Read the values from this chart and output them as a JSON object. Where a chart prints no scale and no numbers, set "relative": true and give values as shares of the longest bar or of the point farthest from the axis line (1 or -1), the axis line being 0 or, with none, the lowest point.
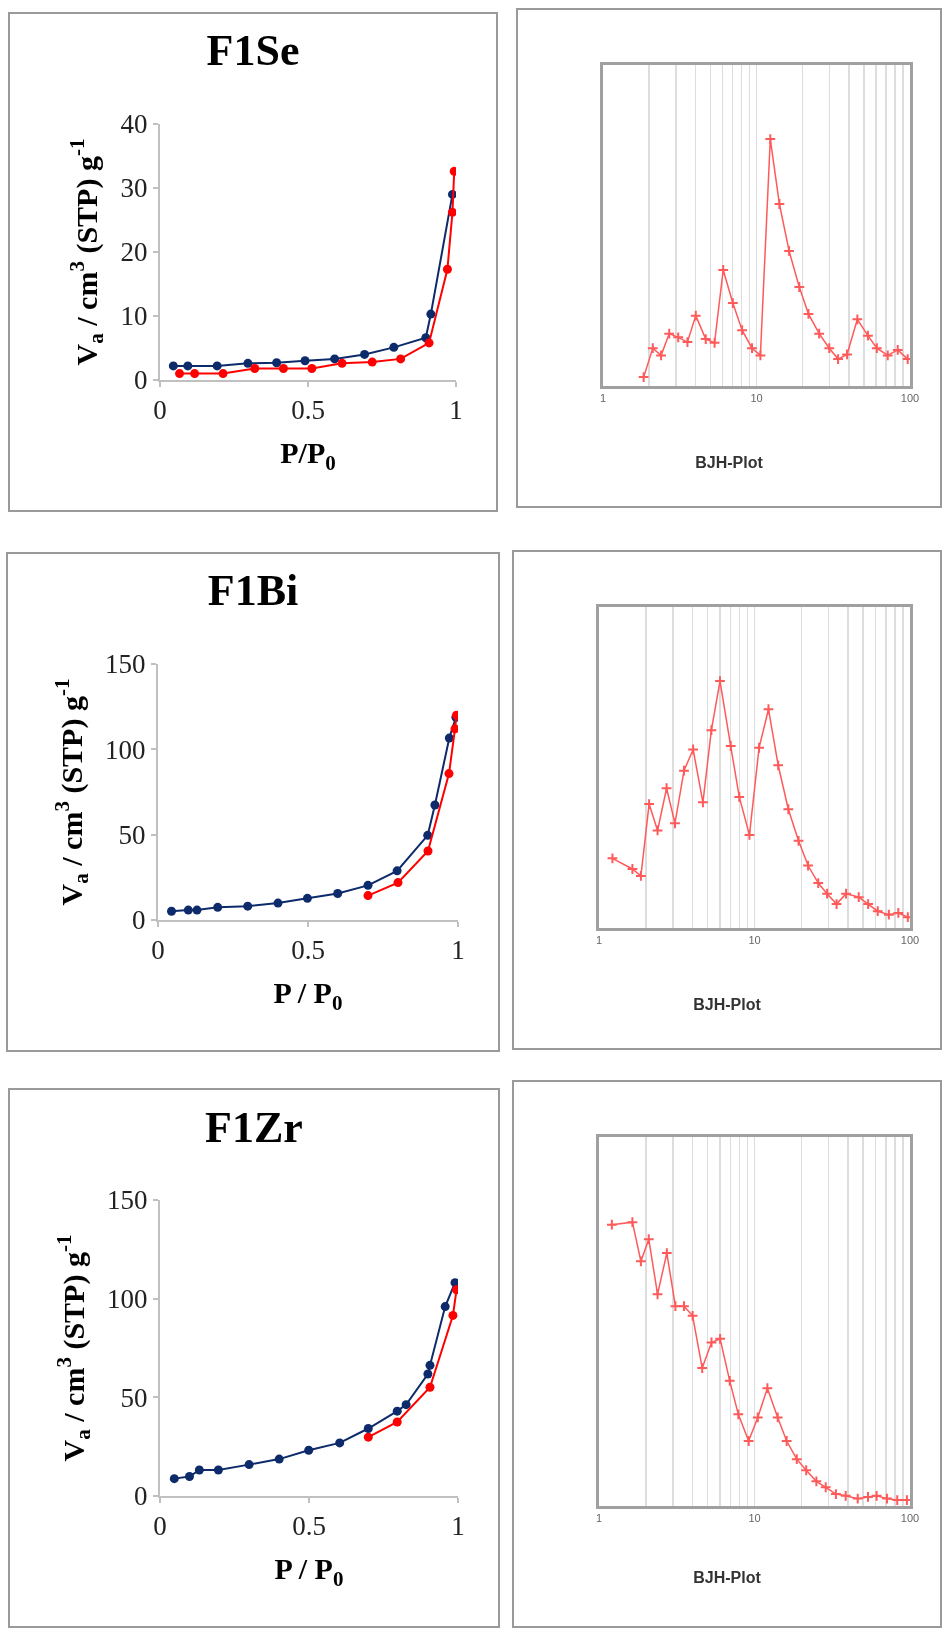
{
  "chart_data": [
    {
      "type": "line",
      "title": "F1Se",
      "xlabel": "P/P$_{0}$",
      "ylabel": "V$_{a}$ / cm$^{3}$ (STP) g$^{-1}$",
      "xlim": [
        0,
        1
      ],
      "xticks": [
        0,
        0.5,
        1
      ],
      "ylim": [
        0,
        40
      ],
      "yticks": [
        0,
        10,
        20,
        30,
        40
      ],
      "marker": "circle",
      "grid": false,
      "series": [
        {
          "color": "#ff0000",
          "x": [
            0.066,
            0.117,
            0.213,
            0.32,
            0.417,
            0.513,
            0.615,
            0.717,
            0.813,
            0.909,
            0.971,
            0.988,
            0.994
          ],
          "values": [
            1.0,
            1.0,
            1.0,
            1.8,
            1.8,
            1.8,
            2.6,
            2.8,
            3.3,
            5.8,
            17.3,
            26.2,
            32.6
          ]
        },
        {
          "color": "#0d2a6b",
          "x": [
            0.045,
            0.094,
            0.193,
            0.297,
            0.394,
            0.49,
            0.59,
            0.691,
            0.79,
            0.898,
            0.915,
            0.988
          ],
          "values": [
            2.2,
            2.2,
            2.2,
            2.6,
            2.7,
            3.0,
            3.3,
            4.0,
            5.1,
            6.6,
            10.3,
            29.0
          ]
        }
      ]
    },
    {
      "type": "line",
      "title": "BJH-Plot",
      "relative": true,
      "log": "x",
      "xlim": [
        1,
        100
      ],
      "xticks": [
        1,
        {
          "value": 2,
          "label": null
        },
        {
          "value": 3,
          "label": null
        },
        {
          "value": 4,
          "label": null
        },
        {
          "value": 5,
          "label": null
        },
        {
          "value": 6,
          "label": null
        },
        {
          "value": 7,
          "label": null
        },
        {
          "value": 8,
          "label": null
        },
        {
          "value": 9,
          "label": null
        },
        10,
        {
          "value": 20,
          "label": null
        },
        {
          "value": 30,
          "label": null
        },
        {
          "value": 40,
          "label": null
        },
        {
          "value": 50,
          "label": null
        },
        {
          "value": 60,
          "label": null
        },
        {
          "value": 70,
          "label": null
        },
        {
          "value": 80,
          "label": null
        },
        {
          "value": 90,
          "label": null
        },
        100
      ],
      "marker": "cross",
      "grid": "x",
      "series": [
        {
          "color": "#ff5a5a",
          "x": [
            1.84,
            2.11,
            2.39,
            2.7,
            3.09,
            3.55,
            4.02,
            4.67,
            5.33,
            6.07,
            7.01,
            8.06,
            9.35,
            10.6,
            12.3,
            14.1,
            16.3,
            19.0,
            21.8,
            25.6,
            29.8,
            34.0,
            38.9,
            45.4,
            53.2,
            60.8,
            71.6,
            83.2,
            96.6
          ],
          "values": [
            0.036,
            0.153,
            0.124,
            0.212,
            0.197,
            0.178,
            0.285,
            0.19,
            0.175,
            0.47,
            0.336,
            0.226,
            0.153,
            0.124,
            1,
            0.737,
            0.547,
            0.401,
            0.292,
            0.212,
            0.153,
            0.109,
            0.128,
            0.27,
            0.204,
            0.153,
            0.124,
            0.146,
            0.109
          ]
        }
      ]
    },
    {
      "type": "line",
      "title": "F1Bi",
      "xlabel": "P / P$_{0}$",
      "ylabel": "V$_{a}$ / cm$^{3}$ (STP) g$^{-1}$",
      "xlim": [
        0,
        1
      ],
      "xticks": [
        0,
        0.5,
        1
      ],
      "ylim": [
        0,
        150
      ],
      "yticks": [
        0,
        50,
        100,
        150
      ],
      "marker": "circle",
      "grid": false,
      "series": [
        {
          "color": "#ff0000",
          "x": [
            0.7,
            0.8,
            0.9,
            0.97,
            0.99,
            0.995
          ],
          "values": [
            14.3,
            21.9,
            40.4,
            85.8,
            112,
            120
          ]
        },
        {
          "color": "#0d2a6b",
          "x": [
            0.045,
            0.101,
            0.13,
            0.199,
            0.299,
            0.4,
            0.498,
            0.599,
            0.7,
            0.797,
            0.899,
            0.923,
            0.971,
            0.993
          ],
          "values": [
            5.1,
            5.8,
            5.8,
            7.4,
            8.1,
            9.9,
            12.7,
            15.5,
            20.3,
            28.8,
            49.6,
            67.4,
            106.6,
            118.8
          ]
        }
      ]
    },
    {
      "type": "line",
      "title": "BJH-Plot",
      "relative": true,
      "log": "x",
      "xlim": [
        1,
        100
      ],
      "xticks": [
        1,
        {
          "value": 2,
          "label": null
        },
        {
          "value": 3,
          "label": null
        },
        {
          "value": 4,
          "label": null
        },
        {
          "value": 5,
          "label": null
        },
        {
          "value": 6,
          "label": null
        },
        {
          "value": 7,
          "label": null
        },
        {
          "value": 8,
          "label": null
        },
        {
          "value": 9,
          "label": null
        },
        10,
        {
          "value": 20,
          "label": null
        },
        {
          "value": 30,
          "label": null
        },
        {
          "value": 40,
          "label": null
        },
        {
          "value": 50,
          "label": null
        },
        {
          "value": 60,
          "label": null
        },
        {
          "value": 70,
          "label": null
        },
        {
          "value": 80,
          "label": null
        },
        {
          "value": 90,
          "label": null
        },
        100
      ],
      "marker": "cross",
      "grid": "x",
      "series": [
        {
          "color": "#ff5a5a",
          "x": [
            1.22,
            1.64,
            1.86,
            2.1,
            2.38,
            2.72,
            3.08,
            3.52,
            4.03,
            4.66,
            5.28,
            6.0,
            7.03,
            7.98,
            9.28,
            10.7,
            12.3,
            14.2,
            16.5,
            19.2,
            22.1,
            25.7,
            29.3,
            33.7,
            38.8,
            46.8,
            53.8,
            62.0,
            73.1,
            84.1,
            96.8
          ],
          "values": [
            0.282,
            0.239,
            0.211,
            0.502,
            0.395,
            0.566,
            0.424,
            0.637,
            0.723,
            0.509,
            0.801,
            1,
            0.737,
            0.531,
            0.377,
            0.73,
            0.886,
            0.659,
            0.481,
            0.353,
            0.253,
            0.182,
            0.139,
            0.097,
            0.139,
            0.125,
            0.097,
            0.068,
            0.054,
            0.061,
            0.044
          ]
        }
      ]
    },
    {
      "type": "line",
      "title": "F1Zr",
      "xlabel": "P / P$_{0}$",
      "ylabel": "V$_{a}$ / cm$^{3}$ (STP) g$^{-1}$",
      "xlim": [
        0,
        1
      ],
      "xticks": [
        0,
        0.5,
        1
      ],
      "ylim": [
        0,
        150
      ],
      "yticks": [
        0,
        50,
        100,
        150
      ],
      "marker": "circle",
      "grid": false,
      "series": [
        {
          "color": "#ff0000",
          "x": [
            0.699,
            0.796,
            0.906,
            0.983,
            0.995
          ],
          "values": [
            29.8,
            37.5,
            55.1,
            91.5,
            104.5
          ]
        },
        {
          "color": "#0d2a6b",
          "x": [
            0.048,
            0.099,
            0.132,
            0.196,
            0.299,
            0.4,
            0.499,
            0.603,
            0.699,
            0.796,
            0.826,
            0.899,
            0.906,
            0.957,
            0.99
          ],
          "values": [
            8.8,
            9.9,
            13.2,
            13.2,
            15.9,
            18.7,
            23.2,
            26.9,
            34.2,
            43.0,
            46.3,
            61.8,
            66.2,
            96.0,
            108.1
          ]
        }
      ]
    },
    {
      "type": "line",
      "title": "BJH-Plot",
      "relative": true,
      "log": "x",
      "xlim": [
        1,
        100
      ],
      "xticks": [
        1,
        {
          "value": 2,
          "label": null
        },
        {
          "value": 3,
          "label": null
        },
        {
          "value": 4,
          "label": null
        },
        {
          "value": 5,
          "label": null
        },
        {
          "value": 6,
          "label": null
        },
        {
          "value": 7,
          "label": null
        },
        {
          "value": 8,
          "label": null
        },
        {
          "value": 9,
          "label": null
        },
        10,
        {
          "value": 20,
          "label": null
        },
        {
          "value": 30,
          "label": null
        },
        {
          "value": 40,
          "label": null
        },
        {
          "value": 50,
          "label": null
        },
        {
          "value": 60,
          "label": null
        },
        {
          "value": 70,
          "label": null
        },
        {
          "value": 80,
          "label": null
        },
        {
          "value": 90,
          "label": null
        },
        100
      ],
      "marker": "cross",
      "grid": "x",
      "series": [
        {
          "color": "#ff5a5a",
          "x": [
            1.21,
            1.64,
            1.86,
            2.09,
            2.38,
            2.73,
            3.1,
            3.52,
            4.0,
            4.61,
            5.29,
            6.01,
            6.93,
            7.87,
            9.17,
            10.5,
            12.1,
            14.1,
            16.1,
            18.7,
            21.5,
            25.0,
            28.7,
            33.4,
            38.6,
            46.1,
            53.7,
            61.0,
            71.1,
            82.8,
            95.5
          ],
          "values": [
            0.991,
            1,
            0.862,
            0.94,
            0.746,
            0.891,
            0.704,
            0.704,
            0.67,
            0.486,
            0.576,
            0.589,
            0.441,
            0.323,
            0.229,
            0.312,
            0.415,
            0.312,
            0.229,
            0.165,
            0.126,
            0.087,
            0.066,
            0.042,
            0.036,
            0.026,
            0.032,
            0.036,
            0.026,
            0.021,
            0.021
          ]
        }
      ]
    }
  ]
}
